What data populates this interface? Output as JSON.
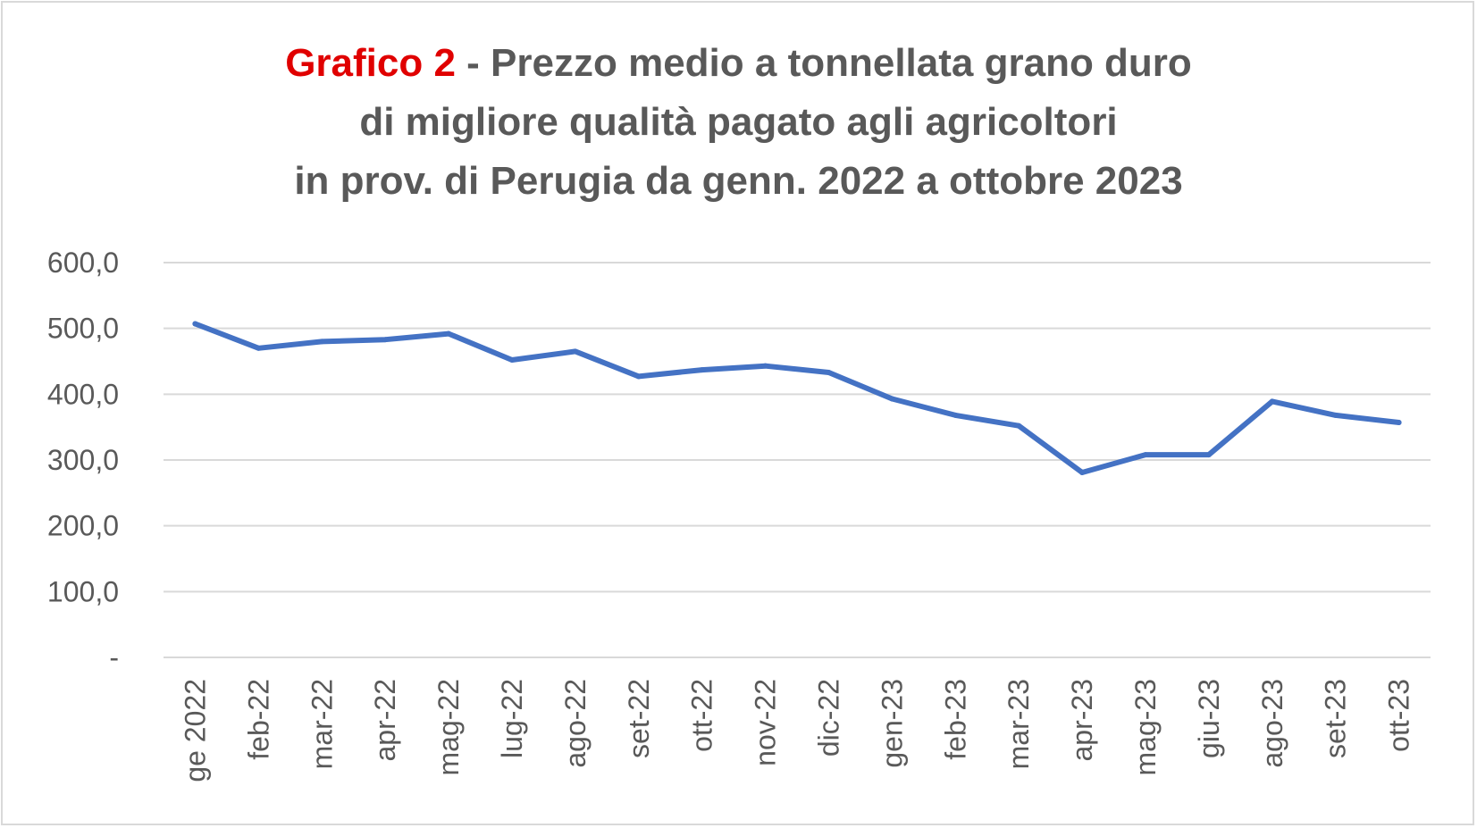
{
  "title": {
    "label": "Grafico 2",
    "line1": " - Prezzo medio a tonnellata grano duro",
    "line2": "di migliore qualità pagato agli agricoltori",
    "line3": "in prov. di Perugia da genn. 2022 a ottobre 2023"
  },
  "colors": {
    "line": "#4472C4",
    "label": "#E00000",
    "text": "#595959",
    "grid": "#D9D9D9"
  },
  "chart_data": {
    "type": "line",
    "title": "Grafico 2 - Prezzo medio a tonnellata grano duro di migliore qualità pagato agli agricoltori in prov. di Perugia da genn. 2022 a ottobre 2023",
    "xlabel": "",
    "ylabel": "",
    "ylim": [
      0,
      600
    ],
    "yticks": [
      0,
      100,
      200,
      300,
      400,
      500,
      600
    ],
    "ytick_labels": [
      "-",
      "100,0",
      "200,0",
      "300,0",
      "400,0",
      "500,0",
      "600,0"
    ],
    "grid": true,
    "legend": "none",
    "categories": [
      "ge 2022",
      "feb-22",
      "mar-22",
      "apr-22",
      "mag-22",
      "lug-22",
      "ago-22",
      "set-22",
      "ott-22",
      "nov-22",
      "dic-22",
      "gen-23",
      "feb-23",
      "mar-23",
      "apr-23",
      "mag-23",
      "giu-23",
      "ago-23",
      "set-23",
      "ott-23"
    ],
    "series": [
      {
        "values": [
          507,
          470,
          480,
          483,
          492,
          452,
          465,
          427,
          437,
          443,
          433,
          393,
          368,
          352,
          281,
          308,
          308,
          389,
          368,
          357
        ]
      }
    ]
  }
}
